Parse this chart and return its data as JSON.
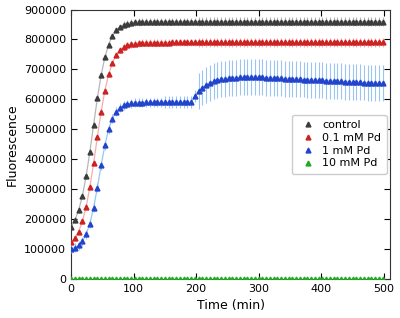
{
  "xlabel": "Time (min)",
  "ylabel": "Fluorescence",
  "xlim": [
    0,
    510
  ],
  "ylim": [
    0,
    900000
  ],
  "yticks": [
    0,
    100000,
    200000,
    300000,
    400000,
    500000,
    600000,
    700000,
    800000,
    900000
  ],
  "xticks": [
    0,
    100,
    200,
    300,
    400,
    500
  ],
  "series": {
    "control": {
      "marker_color": "#3c3c3c",
      "line_color": "#aaaaaa",
      "marker": "^",
      "markersize": 3.5
    },
    "pd01": {
      "marker_color": "#cc2222",
      "line_color": "#f4a0a0",
      "marker": "^",
      "markersize": 3.5
    },
    "pd1": {
      "marker_color": "#2244cc",
      "line_color": "#88bbee",
      "marker": "^",
      "markersize": 3.5
    },
    "pd10": {
      "marker_color": "#22aa22",
      "line_color": "#22aa22",
      "marker": "^",
      "markersize": 3.5
    }
  },
  "legend": {
    "labels": [
      "control",
      "0.1 mM Pd",
      "1 mM Pd",
      "10 mM Pd"
    ],
    "loc": "center right",
    "fontsize": 8
  },
  "background_color": "#ffffff",
  "figsize": [
    4.0,
    3.18
  ],
  "dpi": 100
}
